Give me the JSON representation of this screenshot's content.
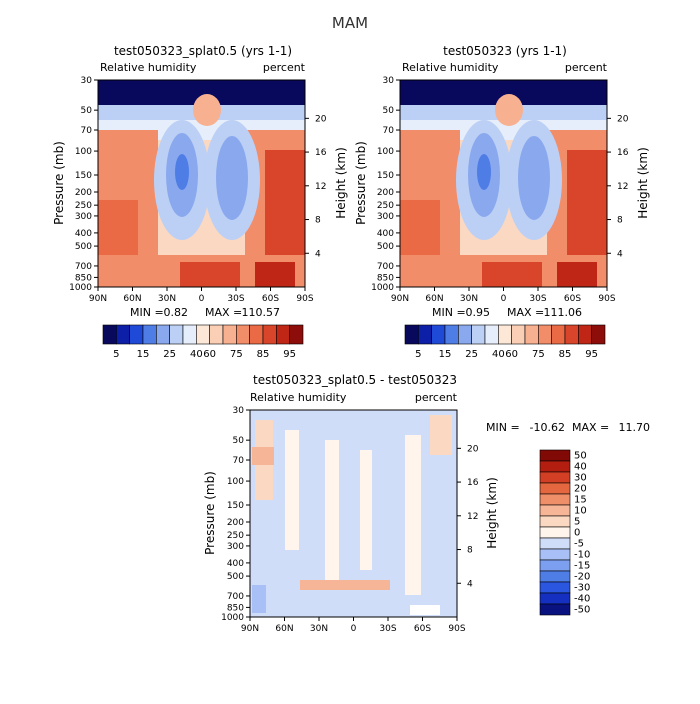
{
  "page": {
    "title": "MAM"
  },
  "colors": {
    "rh_scale": [
      "#08085c",
      "#0d1fa6",
      "#1f4ad8",
      "#4f7de6",
      "#8aa8ee",
      "#bcd0f5",
      "#e6eefb",
      "#fde8d8",
      "#fbcfb6",
      "#f7b090",
      "#f28d6a",
      "#ea6a46",
      "#d9452a",
      "#bf2616",
      "#8c0d0a"
    ],
    "diff_scale": [
      "#0a1280",
      "#1530c0",
      "#2a56e0",
      "#4f7de6",
      "#7c9ff0",
      "#a8c0f5",
      "#d0ddf8",
      "#fff5ec",
      "#fbd8c2",
      "#f5b596",
      "#ef8f6a",
      "#e5673f",
      "#d33f24",
      "#b41e10",
      "#820a06"
    ]
  },
  "chart_data": [
    {
      "type": "heatmap",
      "title": "test050323_splat0.5 (yrs 1-1)",
      "subtitle_left": "Relative humidity",
      "subtitle_right": "percent",
      "ylabel": "Pressure (mb)",
      "ylabel_right": "Height (km)",
      "x_ticks": [
        "90N",
        "60N",
        "30N",
        "0",
        "30S",
        "60S",
        "90S"
      ],
      "y_ticks": [
        "30",
        "50",
        "70",
        "100",
        "150",
        "200",
        "250",
        "300",
        "400",
        "500",
        "700",
        "850",
        "1000"
      ],
      "y_ticks_right": [
        "20",
        "16",
        "12",
        "8",
        "4"
      ],
      "stats": {
        "min_label": "MIN =",
        "min": "0.82",
        "max_label": "MAX =",
        "max": "110.57"
      },
      "colorbar_labels": [
        "5",
        "15",
        "25",
        "40",
        "60",
        "75",
        "85",
        "95"
      ]
    },
    {
      "type": "heatmap",
      "title": "test050323 (yrs 1-1)",
      "subtitle_left": "Relative humidity",
      "subtitle_right": "percent",
      "ylabel": "Pressure (mb)",
      "ylabel_right": "Height (km)",
      "x_ticks": [
        "90N",
        "60N",
        "30N",
        "0",
        "30S",
        "60S",
        "90S"
      ],
      "y_ticks": [
        "30",
        "50",
        "70",
        "100",
        "150",
        "200",
        "250",
        "300",
        "400",
        "500",
        "700",
        "850",
        "1000"
      ],
      "y_ticks_right": [
        "20",
        "16",
        "12",
        "8",
        "4"
      ],
      "stats": {
        "min_label": "MIN =",
        "min": "0.95",
        "max_label": "MAX =",
        "max": "111.06"
      },
      "colorbar_labels": [
        "5",
        "15",
        "25",
        "40",
        "60",
        "75",
        "85",
        "95"
      ]
    },
    {
      "type": "heatmap",
      "title": "test050323_splat0.5 - test050323",
      "subtitle_left": "Relative humidity",
      "subtitle_right": "percent",
      "ylabel": "Pressure (mb)",
      "ylabel_right": "Height (km)",
      "x_ticks": [
        "90N",
        "60N",
        "30N",
        "0",
        "30S",
        "60S",
        "90S"
      ],
      "y_ticks": [
        "30",
        "50",
        "70",
        "100",
        "150",
        "200",
        "250",
        "300",
        "400",
        "500",
        "700",
        "850",
        "1000"
      ],
      "y_ticks_right": [
        "20",
        "16",
        "12",
        "8",
        "4"
      ],
      "stats": {
        "min_label": "MIN =",
        "min": "-10.62",
        "max_label": "MAX =",
        "max": "11.70"
      },
      "colorbar_labels": [
        "50",
        "40",
        "30",
        "20",
        "15",
        "10",
        "5",
        "0",
        "-5",
        "-10",
        "-15",
        "-20",
        "-30",
        "-40",
        "-50"
      ]
    }
  ]
}
